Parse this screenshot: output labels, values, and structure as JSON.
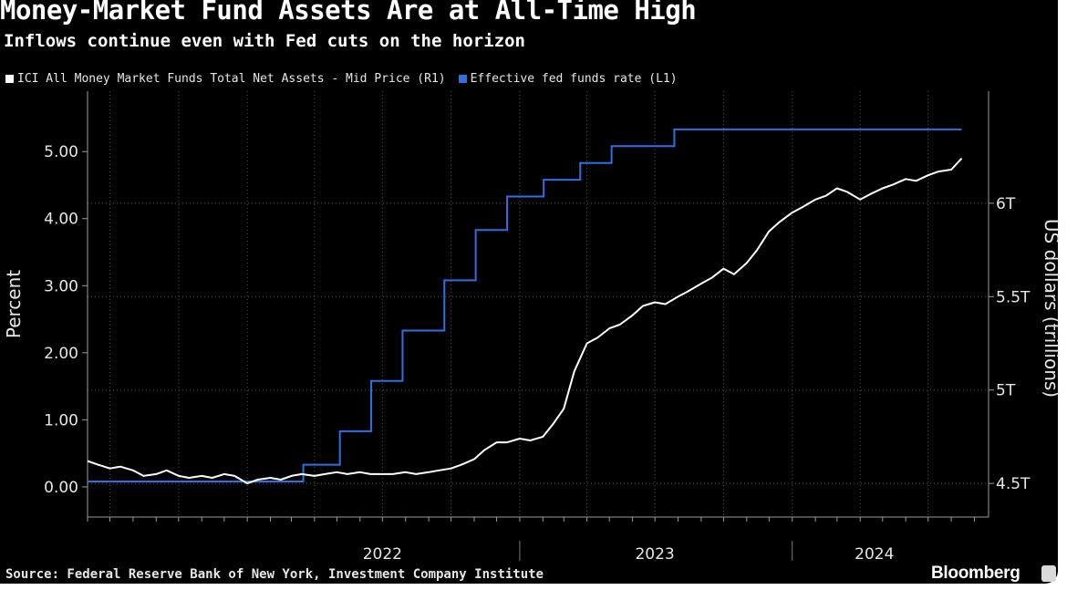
{
  "header": {
    "title": "Money-Market Fund Assets Are at All-Time High",
    "subtitle": "Inflows continue even with Fed cuts on the horizon"
  },
  "footer": {
    "source": "Source: Federal Reserve Bank of New York, Investment Company Institute",
    "brand": "Bloomberg"
  },
  "colors": {
    "background": "#000000",
    "assets_series": "#ffffff",
    "rate_series": "#2f6fe4",
    "grid": "#555555",
    "text": "#e6e6e6"
  },
  "chart_data": {
    "type": "line",
    "title": "Money-Market Fund Assets Are at All-Time High",
    "subtitle": "Inflows continue even with Fed cuts on the horizon",
    "legend_position": "top-left",
    "grid": true,
    "x_tick_labels": [
      "2022",
      "2023",
      "2024"
    ],
    "axes": {
      "left": {
        "label": "Percent",
        "range": [
          -0.45,
          5.9
        ],
        "ticks": [
          0,
          1,
          2,
          3,
          4,
          5
        ],
        "tick_labels": [
          "0.00",
          "1.00",
          "2.00",
          "3.00",
          "4.00",
          "5.00"
        ]
      },
      "right": {
        "label": "US dollars (trillions)",
        "range": [
          4.32,
          6.6
        ],
        "ticks": [
          4.5,
          5,
          5.5,
          6
        ],
        "tick_labels": [
          "4.5T",
          "5T",
          "5.5T",
          "6T"
        ]
      }
    },
    "series": [
      {
        "name": "ICI All Money Market Funds Total Net Assets - Mid Price (R1)",
        "axis": "right",
        "color": "#ffffff",
        "points": [
          [
            "2021-06-01",
            4.62
          ],
          [
            "2021-06-15",
            4.6
          ],
          [
            "2021-07-01",
            4.58
          ],
          [
            "2021-07-15",
            4.59
          ],
          [
            "2021-08-01",
            4.57
          ],
          [
            "2021-08-15",
            4.54
          ],
          [
            "2021-09-01",
            4.55
          ],
          [
            "2021-09-15",
            4.57
          ],
          [
            "2021-10-01",
            4.54
          ],
          [
            "2021-10-15",
            4.53
          ],
          [
            "2021-11-01",
            4.54
          ],
          [
            "2021-11-15",
            4.53
          ],
          [
            "2021-12-01",
            4.55
          ],
          [
            "2021-12-15",
            4.54
          ],
          [
            "2022-01-01",
            4.5
          ],
          [
            "2022-01-15",
            4.52
          ],
          [
            "2022-02-01",
            4.53
          ],
          [
            "2022-02-15",
            4.52
          ],
          [
            "2022-03-01",
            4.54
          ],
          [
            "2022-03-15",
            4.55
          ],
          [
            "2022-04-01",
            4.54
          ],
          [
            "2022-04-15",
            4.55
          ],
          [
            "2022-05-01",
            4.56
          ],
          [
            "2022-05-15",
            4.55
          ],
          [
            "2022-06-01",
            4.56
          ],
          [
            "2022-06-15",
            4.55
          ],
          [
            "2022-07-01",
            4.55
          ],
          [
            "2022-07-15",
            4.55
          ],
          [
            "2022-08-01",
            4.56
          ],
          [
            "2022-08-15",
            4.55
          ],
          [
            "2022-09-01",
            4.56
          ],
          [
            "2022-09-15",
            4.57
          ],
          [
            "2022-10-01",
            4.58
          ],
          [
            "2022-10-15",
            4.6
          ],
          [
            "2022-11-01",
            4.63
          ],
          [
            "2022-11-15",
            4.68
          ],
          [
            "2022-12-01",
            4.72
          ],
          [
            "2022-12-15",
            4.72
          ],
          [
            "2023-01-01",
            4.74
          ],
          [
            "2023-01-15",
            4.73
          ],
          [
            "2023-02-01",
            4.75
          ],
          [
            "2023-02-15",
            4.82
          ],
          [
            "2023-03-01",
            4.9
          ],
          [
            "2023-03-15",
            5.1
          ],
          [
            "2023-04-01",
            5.25
          ],
          [
            "2023-04-15",
            5.28
          ],
          [
            "2023-05-01",
            5.33
          ],
          [
            "2023-05-15",
            5.35
          ],
          [
            "2023-06-01",
            5.4
          ],
          [
            "2023-06-15",
            5.45
          ],
          [
            "2023-07-01",
            5.47
          ],
          [
            "2023-07-15",
            5.46
          ],
          [
            "2023-08-01",
            5.5
          ],
          [
            "2023-08-15",
            5.53
          ],
          [
            "2023-09-01",
            5.57
          ],
          [
            "2023-09-15",
            5.6
          ],
          [
            "2023-10-01",
            5.65
          ],
          [
            "2023-10-15",
            5.62
          ],
          [
            "2023-11-01",
            5.68
          ],
          [
            "2023-11-15",
            5.75
          ],
          [
            "2023-12-01",
            5.85
          ],
          [
            "2023-12-15",
            5.9
          ],
          [
            "2024-01-01",
            5.95
          ],
          [
            "2024-01-15",
            5.98
          ],
          [
            "2024-02-01",
            6.02
          ],
          [
            "2024-02-15",
            6.04
          ],
          [
            "2024-03-01",
            6.08
          ],
          [
            "2024-03-15",
            6.06
          ],
          [
            "2024-04-01",
            6.02
          ],
          [
            "2024-04-15",
            6.05
          ],
          [
            "2024-05-01",
            6.08
          ],
          [
            "2024-05-15",
            6.1
          ],
          [
            "2024-06-01",
            6.13
          ],
          [
            "2024-06-15",
            6.12
          ],
          [
            "2024-07-01",
            6.15
          ],
          [
            "2024-07-15",
            6.17
          ],
          [
            "2024-08-01",
            6.18
          ],
          [
            "2024-08-15",
            6.24
          ]
        ]
      },
      {
        "name": "Effective fed funds rate (L1)",
        "axis": "left",
        "color": "#2f6fe4",
        "step": true,
        "points": [
          [
            "2021-06-01",
            0.08
          ],
          [
            "2022-03-17",
            0.33
          ],
          [
            "2022-05-05",
            0.83
          ],
          [
            "2022-06-16",
            1.58
          ],
          [
            "2022-07-28",
            2.33
          ],
          [
            "2022-09-22",
            3.08
          ],
          [
            "2022-11-03",
            3.83
          ],
          [
            "2022-12-15",
            4.33
          ],
          [
            "2023-02-02",
            4.58
          ],
          [
            "2023-03-23",
            4.83
          ],
          [
            "2023-05-04",
            5.08
          ],
          [
            "2023-07-27",
            5.33
          ],
          [
            "2024-08-15",
            5.33
          ]
        ]
      }
    ]
  }
}
